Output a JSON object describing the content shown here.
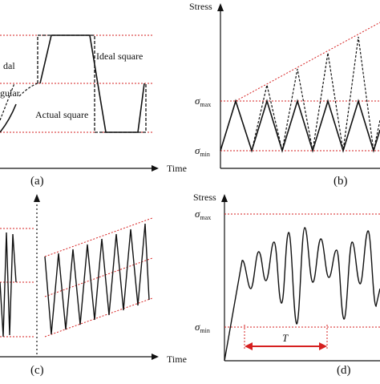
{
  "colors": {
    "curve": "#111111",
    "guide": "#d62020",
    "arrow": "#d62020",
    "axis": "#111111"
  },
  "panels": {
    "a": {
      "label": "(a)",
      "x_axis_label": "Time",
      "labels": {
        "sinusoidal": "dal",
        "triangular": "gular",
        "ideal_square": "Ideal square",
        "actual_square": "Actual square"
      }
    },
    "b": {
      "label": "(b)",
      "y_axis_label": "Stress",
      "sigma_max": {
        "symbol": "σ",
        "sub": "max"
      },
      "sigma_min": {
        "symbol": "σ",
        "sub": "min"
      }
    },
    "c": {
      "label": "(c)",
      "x_axis_label": "Time"
    },
    "d": {
      "label": "(d)",
      "y_axis_label": "Stress",
      "sigma_max": {
        "symbol": "σ",
        "sub": "max"
      },
      "sigma_min": {
        "symbol": "σ",
        "sub": "min"
      },
      "period_label": "T"
    }
  },
  "icons": {
    "axis_arrow": "triangle-arrowhead",
    "period_arrow": "double-headed-arrow"
  }
}
